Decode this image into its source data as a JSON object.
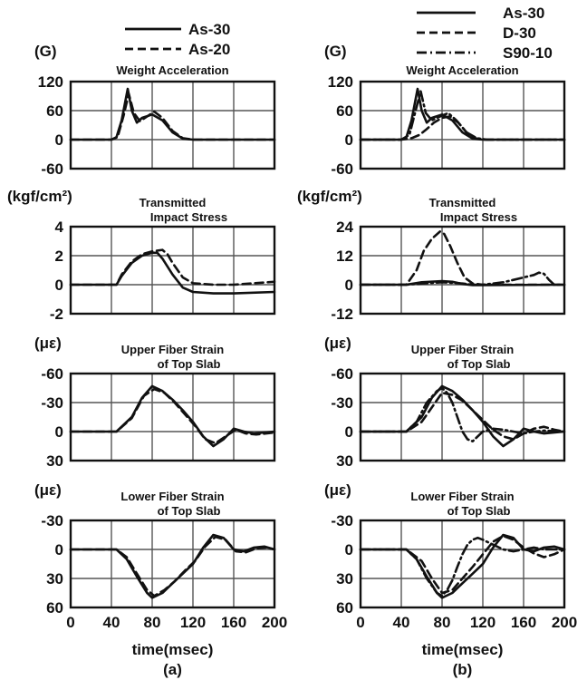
{
  "figure": {
    "xlabel": "time(msec)",
    "x_ticks": [
      "0",
      "40",
      "80",
      "120",
      "160",
      "200"
    ]
  },
  "columns": [
    {
      "sublabel": "(a)",
      "legend": [
        {
          "name": "As-30",
          "dash": "solid"
        },
        {
          "name": "As-20",
          "dash": "dashed"
        }
      ]
    },
    {
      "sublabel": "(b)",
      "legend": [
        {
          "name": "As-30",
          "dash": "solid"
        },
        {
          "name": "D-30",
          "dash": "dashed"
        },
        {
          "name": "S90-10",
          "dash": "dashdot"
        }
      ]
    }
  ],
  "chart_data": [
    {
      "type": "line",
      "panel": "a1",
      "unit": "(G)",
      "title": [
        "Weight Acceleration"
      ],
      "xlim": [
        0,
        200
      ],
      "ylim": [
        -60,
        120
      ],
      "y_inverted": false,
      "y_ticks": [
        "120",
        "60",
        "0",
        "-60"
      ],
      "series": [
        {
          "name": "As-30",
          "dash": "solid",
          "x": [
            0,
            40,
            45,
            50,
            56,
            60,
            65,
            70,
            80,
            90,
            100,
            110,
            120,
            200
          ],
          "y": [
            0,
            0,
            5,
            40,
            105,
            60,
            35,
            45,
            52,
            40,
            15,
            2,
            0,
            0
          ]
        },
        {
          "name": "As-20",
          "dash": "dashed",
          "x": [
            0,
            40,
            46,
            52,
            57,
            62,
            68,
            75,
            82,
            90,
            100,
            110,
            120,
            200
          ],
          "y": [
            0,
            0,
            5,
            50,
            95,
            55,
            38,
            48,
            58,
            45,
            18,
            3,
            0,
            0
          ]
        }
      ]
    },
    {
      "type": "line",
      "panel": "a2",
      "unit": "(kgf/cm²)",
      "title": [
        "Transmitted",
        "Impact Stress"
      ],
      "xlim": [
        0,
        200
      ],
      "ylim": [
        -2,
        4
      ],
      "y_inverted": false,
      "y_ticks": [
        "4",
        "2",
        "0",
        "-2"
      ],
      "series": [
        {
          "name": "As-30",
          "dash": "solid",
          "x": [
            0,
            45,
            50,
            60,
            70,
            80,
            85,
            90,
            100,
            110,
            120,
            140,
            160,
            200
          ],
          "y": [
            0,
            0,
            0.6,
            1.5,
            2.0,
            2.2,
            2.2,
            1.8,
            0.7,
            -0.2,
            -0.5,
            -0.6,
            -0.6,
            -0.5
          ]
        },
        {
          "name": "As-20",
          "dash": "dashed",
          "x": [
            0,
            45,
            50,
            60,
            70,
            80,
            90,
            95,
            100,
            110,
            120,
            140,
            160,
            200
          ],
          "y": [
            0,
            0,
            0.7,
            1.6,
            2.1,
            2.3,
            2.4,
            2.1,
            1.5,
            0.5,
            0.1,
            0,
            0,
            0.2
          ]
        }
      ]
    },
    {
      "type": "line",
      "panel": "a3",
      "unit": "(με)",
      "title": [
        "Upper Fiber Strain",
        "of Top Slab"
      ],
      "xlim": [
        0,
        200
      ],
      "ylim": [
        -60,
        30
      ],
      "y_inverted": true,
      "y_ticks": [
        "-60",
        "-30",
        "0",
        "30"
      ],
      "series": [
        {
          "name": "As-30",
          "dash": "solid",
          "x": [
            0,
            45,
            60,
            70,
            80,
            90,
            100,
            110,
            120,
            130,
            140,
            150,
            160,
            170,
            180,
            200
          ],
          "y": [
            0,
            0,
            -15,
            -35,
            -47,
            -42,
            -33,
            -22,
            -10,
            5,
            15,
            8,
            -3,
            0,
            2,
            0
          ]
        },
        {
          "name": "As-20",
          "dash": "dashed",
          "x": [
            0,
            45,
            60,
            72,
            82,
            92,
            102,
            112,
            122,
            132,
            142,
            152,
            162,
            172,
            182,
            200
          ],
          "y": [
            0,
            0,
            -14,
            -37,
            -44,
            -40,
            -30,
            -18,
            -6,
            8,
            12,
            5,
            -2,
            2,
            3,
            1
          ]
        }
      ]
    },
    {
      "type": "line",
      "panel": "a4",
      "unit": "(με)",
      "title": [
        "Lower Fiber Strain",
        "of Top Slab"
      ],
      "xlim": [
        0,
        200
      ],
      "ylim": [
        -30,
        60
      ],
      "y_inverted": true,
      "y_ticks": [
        "-30",
        "0",
        "30",
        "60"
      ],
      "series": [
        {
          "name": "As-30",
          "dash": "solid",
          "x": [
            0,
            45,
            55,
            65,
            75,
            80,
            90,
            100,
            110,
            120,
            130,
            140,
            150,
            160,
            170,
            180,
            190,
            200
          ],
          "y": [
            0,
            0,
            10,
            28,
            45,
            50,
            45,
            35,
            25,
            15,
            -2,
            -15,
            -12,
            0,
            2,
            -2,
            -3,
            0
          ]
        },
        {
          "name": "As-20",
          "dash": "dashed",
          "x": [
            0,
            45,
            55,
            65,
            75,
            82,
            92,
            102,
            112,
            122,
            132,
            142,
            152,
            162,
            172,
            182,
            192,
            200
          ],
          "y": [
            0,
            0,
            8,
            25,
            42,
            48,
            42,
            33,
            22,
            12,
            -3,
            -13,
            -10,
            2,
            3,
            -1,
            -2,
            0
          ]
        }
      ]
    },
    {
      "type": "line",
      "panel": "b1",
      "unit": "(G)",
      "title": [
        "Weight Acceleration"
      ],
      "xlim": [
        0,
        200
      ],
      "ylim": [
        -60,
        120
      ],
      "y_inverted": false,
      "y_ticks": [
        "120",
        "60",
        "0",
        "-60"
      ],
      "series": [
        {
          "name": "As-30",
          "dash": "solid",
          "x": [
            0,
            40,
            45,
            50,
            56,
            60,
            65,
            70,
            80,
            90,
            100,
            110,
            120,
            200
          ],
          "y": [
            0,
            0,
            5,
            40,
            105,
            60,
            35,
            45,
            52,
            40,
            15,
            2,
            0,
            0
          ]
        },
        {
          "name": "D-30",
          "dash": "dashed",
          "x": [
            0,
            40,
            50,
            58,
            64,
            72,
            80,
            88,
            96,
            104,
            112,
            120,
            200
          ],
          "y": [
            0,
            0,
            3,
            10,
            20,
            35,
            45,
            48,
            35,
            15,
            3,
            0,
            0
          ]
        },
        {
          "name": "S90-10",
          "dash": "dashdot",
          "x": [
            0,
            40,
            48,
            54,
            59,
            64,
            70,
            78,
            86,
            94,
            104,
            114,
            124,
            200
          ],
          "y": [
            0,
            0,
            10,
            60,
            100,
            55,
            40,
            48,
            55,
            40,
            15,
            3,
            0,
            0
          ]
        }
      ]
    },
    {
      "type": "line",
      "panel": "b2",
      "unit": "(kgf/cm²)",
      "title": [
        "Transmitted",
        "Impact Stress"
      ],
      "xlim": [
        0,
        200
      ],
      "ylim": [
        -12,
        24
      ],
      "y_inverted": false,
      "y_ticks": [
        "24",
        "12",
        "0",
        "-12"
      ],
      "series": [
        {
          "name": "As-30",
          "dash": "solid",
          "x": [
            0,
            45,
            60,
            80,
            90,
            100,
            110,
            120,
            200
          ],
          "y": [
            0,
            0,
            1,
            1.5,
            1.2,
            0.3,
            -0.2,
            -0.2,
            0
          ]
        },
        {
          "name": "D-30",
          "dash": "dashed",
          "x": [
            0,
            45,
            55,
            62,
            70,
            78,
            82,
            88,
            95,
            102,
            110,
            120,
            200
          ],
          "y": [
            0,
            0,
            6,
            14,
            19,
            22,
            21,
            16,
            9,
            3,
            0.5,
            0,
            0
          ]
        },
        {
          "name": "S90-10",
          "dash": "dashdot",
          "x": [
            0,
            45,
            60,
            80,
            100,
            110,
            120,
            130,
            140,
            150,
            160,
            170,
            175,
            180,
            185,
            190,
            200
          ],
          "y": [
            0,
            0,
            0.5,
            1,
            0.5,
            0,
            0,
            0.5,
            1,
            2,
            3,
            4,
            5,
            4.5,
            2,
            0,
            0
          ]
        }
      ]
    },
    {
      "type": "line",
      "panel": "b3",
      "unit": "(με)",
      "title": [
        "Upper Fiber Strain",
        "of Top Slab"
      ],
      "xlim": [
        0,
        200
      ],
      "ylim": [
        -60,
        30
      ],
      "y_inverted": true,
      "y_ticks": [
        "-60",
        "-30",
        "0",
        "30"
      ],
      "series": [
        {
          "name": "As-30",
          "dash": "solid",
          "x": [
            0,
            45,
            60,
            70,
            80,
            90,
            100,
            110,
            120,
            130,
            140,
            150,
            160,
            170,
            180,
            200
          ],
          "y": [
            0,
            0,
            -15,
            -35,
            -47,
            -42,
            -33,
            -22,
            -10,
            5,
            15,
            8,
            -3,
            0,
            2,
            0
          ]
        },
        {
          "name": "D-30",
          "dash": "dashed",
          "x": [
            0,
            45,
            60,
            70,
            80,
            90,
            100,
            110,
            120,
            130,
            140,
            150,
            160,
            170,
            180,
            190,
            200
          ],
          "y": [
            0,
            0,
            -10,
            -25,
            -40,
            -38,
            -32,
            -22,
            -12,
            -2,
            5,
            8,
            2,
            -3,
            -5,
            -2,
            0
          ]
        },
        {
          "name": "S90-10",
          "dash": "dashdot",
          "x": [
            0,
            45,
            55,
            65,
            75,
            80,
            85,
            90,
            95,
            100,
            105,
            110,
            115,
            120,
            130,
            140,
            150,
            160,
            170,
            180,
            200
          ],
          "y": [
            0,
            0,
            -10,
            -30,
            -42,
            -45,
            -40,
            -30,
            -15,
            0,
            8,
            10,
            5,
            0,
            -3,
            -2,
            0,
            2,
            0,
            -1,
            0
          ]
        }
      ]
    },
    {
      "type": "line",
      "panel": "b4",
      "unit": "(με)",
      "title": [
        "Lower Fiber Strain",
        "of Top Slab"
      ],
      "xlim": [
        0,
        200
      ],
      "ylim": [
        -30,
        60
      ],
      "y_inverted": true,
      "y_ticks": [
        "-30",
        "0",
        "30",
        "60"
      ],
      "series": [
        {
          "name": "As-30",
          "dash": "solid",
          "x": [
            0,
            45,
            55,
            65,
            75,
            80,
            90,
            100,
            110,
            120,
            130,
            140,
            150,
            160,
            170,
            180,
            190,
            200
          ],
          "y": [
            0,
            0,
            10,
            28,
            45,
            50,
            45,
            35,
            25,
            15,
            -2,
            -15,
            -12,
            0,
            2,
            -2,
            -3,
            0
          ]
        },
        {
          "name": "D-30",
          "dash": "dashed",
          "x": [
            0,
            45,
            60,
            70,
            80,
            90,
            100,
            110,
            120,
            130,
            140,
            150,
            160,
            170,
            180,
            190,
            200
          ],
          "y": [
            0,
            0,
            12,
            30,
            45,
            42,
            30,
            18,
            5,
            -8,
            -14,
            -10,
            -2,
            4,
            8,
            5,
            0
          ]
        },
        {
          "name": "S90-10",
          "dash": "dashdot",
          "x": [
            0,
            45,
            55,
            65,
            75,
            80,
            85,
            90,
            95,
            100,
            105,
            110,
            115,
            120,
            130,
            140,
            150,
            160,
            170,
            180,
            200
          ],
          "y": [
            0,
            0,
            10,
            30,
            45,
            48,
            42,
            32,
            18,
            5,
            -5,
            -10,
            -12,
            -10,
            -5,
            0,
            2,
            0,
            -2,
            0,
            0
          ]
        }
      ]
    }
  ]
}
